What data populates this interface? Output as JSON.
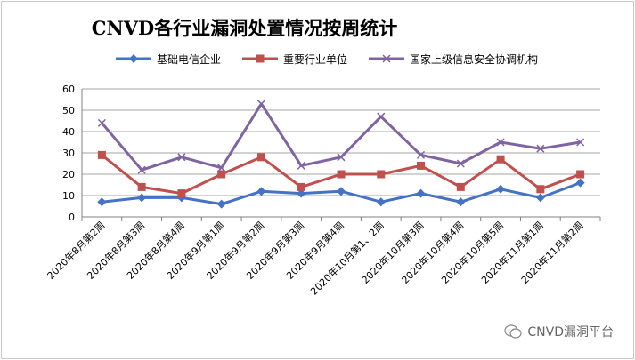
{
  "chart_data": {
    "type": "line",
    "title": "CNVD各行业漏洞处置情况按周统计",
    "categories": [
      "2020年8月第2周",
      "2020年8月第3周",
      "2020年8月第4周",
      "2020年9月第1周",
      "2020年9月第2周",
      "2020年9月第3周",
      "2020年9月第4周",
      "2020年10月第1、2周",
      "2020年10月第3周",
      "2020年10月第4周",
      "2020年10月第5周",
      "2020年11月第1周",
      "2020年11月第2周"
    ],
    "ylim": [
      0,
      60
    ],
    "yticks": [
      "0",
      "10",
      "20",
      "30",
      "40",
      "50",
      "60"
    ],
    "grid": true,
    "legend_position": "top",
    "series": [
      {
        "name": "基础电信企业",
        "color": "#4472c4",
        "marker": "diamond",
        "values": [
          7,
          9,
          9,
          6,
          12,
          11,
          12,
          7,
          11,
          7,
          13,
          9,
          16
        ]
      },
      {
        "name": "重要行业单位",
        "color": "#c0504d",
        "marker": "square",
        "values": [
          29,
          14,
          11,
          20,
          28,
          14,
          20,
          20,
          24,
          14,
          27,
          13,
          20
        ]
      },
      {
        "name": "国家上级信息安全协调机构",
        "color": "#8064a2",
        "marker": "x",
        "values": [
          44,
          22,
          28,
          23,
          53,
          24,
          28,
          47,
          29,
          25,
          35,
          32,
          35
        ]
      }
    ]
  },
  "watermark": {
    "text": "CNVD漏洞平台",
    "icon": "wechat-icon"
  }
}
